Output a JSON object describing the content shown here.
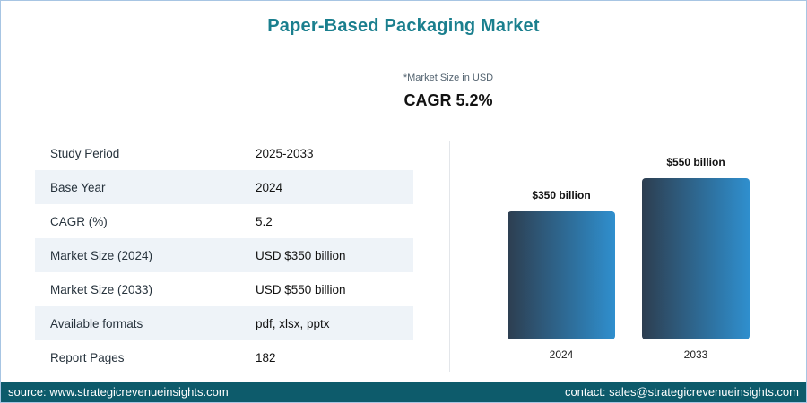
{
  "colors": {
    "title": "#1a7f8e",
    "row_alt": "#eef3f8",
    "bar_start": "#2d3e50",
    "bar_end": "#2f8fce",
    "footer_bg": "#0d5b6b",
    "border": "#a7c5e3"
  },
  "header": {
    "title": "Paper-Based Packaging Market",
    "note": "*Market Size in USD",
    "cagr_label": "CAGR 5.2%"
  },
  "table": {
    "rows": [
      {
        "label": "Study Period",
        "value": "2025-2033"
      },
      {
        "label": "Base Year",
        "value": "2024"
      },
      {
        "label": "CAGR (%)",
        "value": "5.2"
      },
      {
        "label": "Market Size (2024)",
        "value": "USD $350 billion"
      },
      {
        "label": "Market Size (2033)",
        "value": "USD $550 billion"
      },
      {
        "label": "Available formats",
        "value": "pdf, xlsx, pptx"
      },
      {
        "label": "Report Pages",
        "value": "182"
      }
    ]
  },
  "chart_data": {
    "type": "bar",
    "categories": [
      "2024",
      "2033"
    ],
    "values": [
      350,
      550
    ],
    "value_labels": [
      "$350 billion",
      "$550 billion"
    ],
    "unit": "USD billion",
    "title": "",
    "xlabel": "",
    "ylabel": "",
    "legend": "none",
    "grid": false
  },
  "footer": {
    "source": "source: www.strategicrevenueinsights.com",
    "contact": "contact: sales@strategicrevenueinsights.com"
  }
}
